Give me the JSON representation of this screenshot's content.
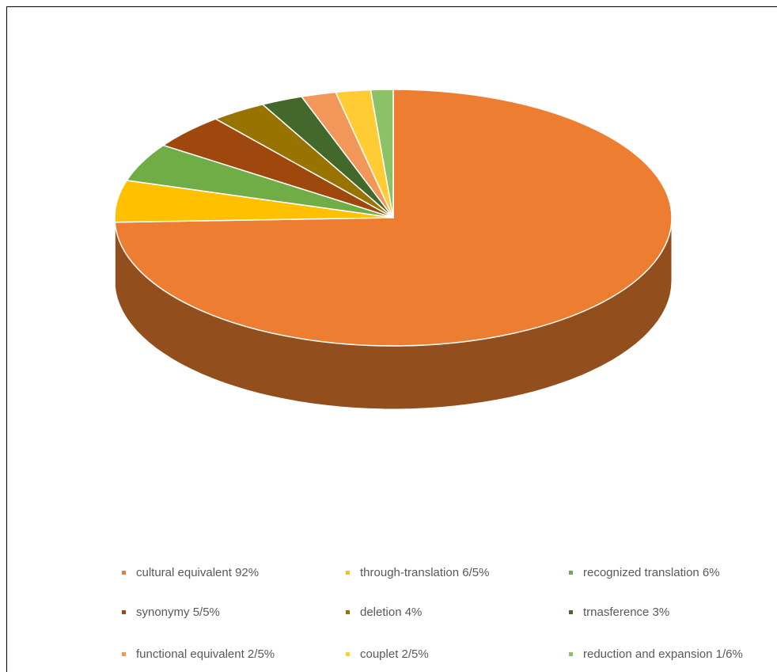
{
  "chart_data": {
    "type": "pie3d",
    "categories": [
      "cultural equivalent 92%",
      "through-translation 6/5%",
      "recognized translation 6%",
      "synonymy 5/5%",
      "deletion 4%",
      "trnasference 3%",
      "functional equivalent 2/5%",
      "couplet 2/5%",
      "reduction and expansion 1/6%"
    ],
    "values": [
      92,
      6.5,
      6,
      5.5,
      4,
      3,
      2.5,
      2.5,
      1.6
    ],
    "colors": [
      "#ED7D31",
      "#FFC000",
      "#70AD47",
      "#9E480E",
      "#997300",
      "#43682B",
      "#F1975A",
      "#FFCD33",
      "#8CC168"
    ],
    "legend": "bottom"
  }
}
